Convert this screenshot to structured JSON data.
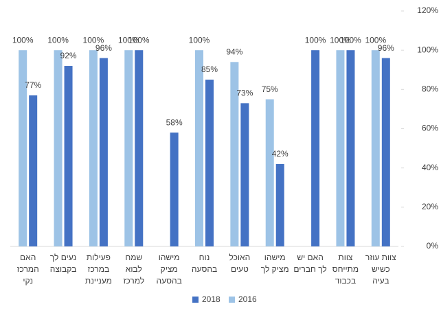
{
  "chart_data": {
    "type": "bar",
    "categories": [
      [
        "האם",
        "המרכז",
        "נקי"
      ],
      [
        "נעים לך",
        "בקבוצה"
      ],
      [
        "פעילות",
        "במרכז",
        "מעניינת"
      ],
      [
        "שמח",
        "לבוא",
        "למרכז"
      ],
      [
        "מישהו",
        "מציק",
        "בהסעה"
      ],
      [
        "נוח",
        "בהסעה"
      ],
      [
        "האוכל",
        "טעים"
      ],
      [
        "מישהו",
        "מציק לך"
      ],
      [
        "האם יש",
        "לך חברים"
      ],
      [
        "צוות",
        "מתייחס",
        "בכבוד"
      ],
      [
        "צוות עוזר",
        "כשיש",
        "בעיה"
      ]
    ],
    "series": [
      {
        "name": "2016",
        "color": "#9dc3e6",
        "values": [
          100,
          100,
          100,
          100,
          null,
          100,
          94,
          75,
          null,
          100,
          100
        ],
        "value_labels": [
          "100%",
          "100%",
          "100%",
          "100%",
          null,
          "100%",
          "94%",
          "75%",
          null,
          "100%",
          "100%"
        ]
      },
      {
        "name": "2018",
        "color": "#4472c4",
        "values": [
          77,
          92,
          96,
          100,
          58,
          85,
          73,
          42,
          100,
          100,
          96
        ],
        "value_labels": [
          "77%",
          "92%",
          "96%",
          "100%",
          "58%",
          "85%",
          "73%",
          "42%",
          "100%",
          "100%",
          "96%"
        ]
      }
    ],
    "ylim": [
      0,
      120
    ],
    "yticks": [
      {
        "value": 0,
        "label": "0%"
      },
      {
        "value": 20,
        "label": "20%"
      },
      {
        "value": 40,
        "label": "40%"
      },
      {
        "value": 60,
        "label": "60%"
      },
      {
        "value": 80,
        "label": "80%"
      },
      {
        "value": 100,
        "label": "100%"
      },
      {
        "value": 120,
        "label": "120%"
      }
    ],
    "grid": false,
    "legend": "bottom"
  }
}
